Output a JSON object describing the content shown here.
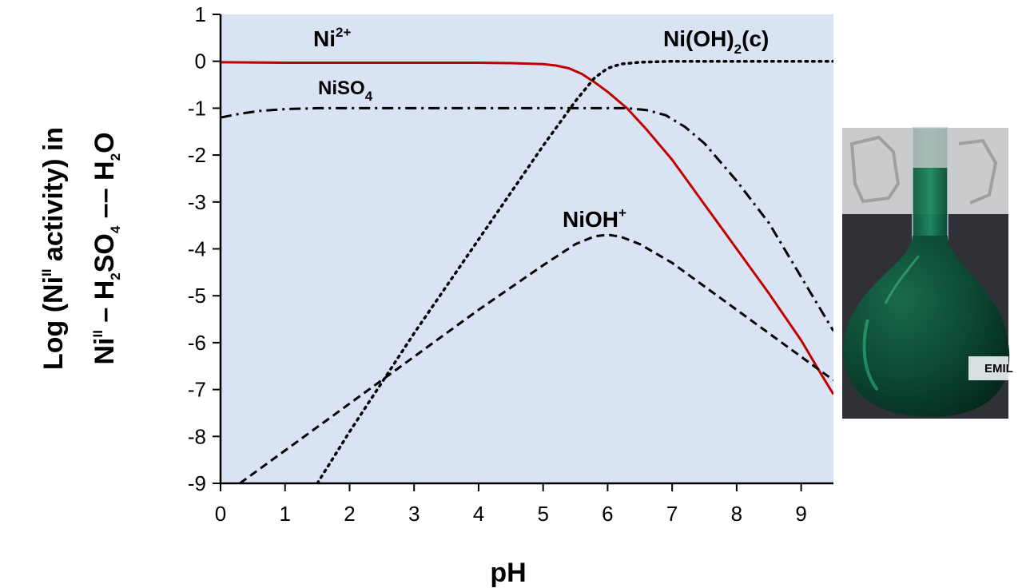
{
  "chart_data": {
    "type": "line",
    "xlabel": "pH",
    "ylabel_line1": "Log (Ni",
    "ylabel_line1_sup": "II",
    "ylabel_line1_end": " activity) in",
    "ylabel_line2_a": "Ni",
    "ylabel_line2_a_sup": "II",
    "ylabel_line2_b": " – H",
    "ylabel_line2_b_sub": "2",
    "ylabel_line2_c": "SO",
    "ylabel_line2_c_sub": "4",
    "ylabel_line2_d": " –– H",
    "ylabel_line2_d_sub": "2",
    "ylabel_line2_e": "O",
    "xlim": [
      0,
      9.5
    ],
    "ylim": [
      -9,
      1
    ],
    "xticks": [
      "0",
      "1",
      "2",
      "3",
      "4",
      "5",
      "6",
      "7",
      "8",
      "9"
    ],
    "yticks": [
      "1",
      "0",
      "-1",
      "-2",
      "-3",
      "-4",
      "-5",
      "-6",
      "-7",
      "-8",
      "-9"
    ],
    "grid": false,
    "background": "#dae3f3",
    "series": [
      {
        "name": "Ni2+",
        "label_base": "Ni",
        "label_sup": "2+",
        "color": "#c00000",
        "style": "solid",
        "x": [
          0,
          1,
          2,
          3,
          4,
          4.5,
          5,
          5.2,
          5.4,
          5.6,
          5.8,
          6.0,
          6.3,
          6.6,
          7,
          7.5,
          8,
          8.5,
          9,
          9.3,
          9.5
        ],
        "y": [
          -0.02,
          -0.03,
          -0.03,
          -0.03,
          -0.03,
          -0.04,
          -0.06,
          -0.09,
          -0.15,
          -0.27,
          -0.45,
          -0.65,
          -1.0,
          -1.45,
          -2.1,
          -3.05,
          -4.0,
          -4.95,
          -5.95,
          -6.65,
          -7.1
        ]
      },
      {
        "name": "NiSO4",
        "label_base": "NiSO",
        "label_sub": "4",
        "color": "#000000",
        "style": "dashdot",
        "x": [
          0,
          0.3,
          0.6,
          1,
          1.5,
          2,
          3,
          4,
          5,
          5.6,
          6.0,
          6.3,
          6.6,
          6.9,
          7.2,
          7.5,
          8,
          8.5,
          9,
          9.5
        ],
        "y": [
          -1.2,
          -1.12,
          -1.06,
          -1.02,
          -1.0,
          -1.0,
          -1.0,
          -1.0,
          -1.0,
          -1.0,
          -1.0,
          -1.0,
          -1.04,
          -1.15,
          -1.4,
          -1.75,
          -2.55,
          -3.45,
          -4.6,
          -5.75
        ]
      },
      {
        "name": "NiOH+",
        "label_base": "NiOH",
        "label_sup": "+",
        "color": "#000000",
        "style": "dashed",
        "x": [
          0.3,
          1,
          2,
          3,
          4,
          5,
          5.5,
          5.8,
          6.0,
          6.2,
          6.5,
          7,
          8,
          9,
          9.5
        ],
        "y": [
          -9.0,
          -8.3,
          -7.3,
          -6.3,
          -5.3,
          -4.35,
          -3.9,
          -3.73,
          -3.7,
          -3.74,
          -3.9,
          -4.3,
          -5.3,
          -6.3,
          -6.8
        ]
      },
      {
        "name": "Ni(OH)2(c)",
        "label_base": "Ni(OH)",
        "label_sub": "2",
        "label_end": "(c)",
        "color": "#000000",
        "style": "dotted",
        "x": [
          1.5,
          2,
          3,
          4,
          5,
          5.5,
          5.8,
          6.0,
          6.2,
          6.5,
          7,
          8,
          9,
          9.5
        ],
        "y": [
          -9.0,
          -7.9,
          -5.8,
          -3.8,
          -1.8,
          -0.85,
          -0.35,
          -0.15,
          -0.06,
          -0.02,
          0.0,
          0.0,
          0.0,
          0.0
        ]
      }
    ]
  },
  "photo": {
    "icon": "volumetric-flask-photo",
    "brand_label": "EMIL",
    "liquid_color": "#0b4a35",
    "highlight_color": "#1f8f67",
    "backdrop_color": "#3a3c42"
  }
}
